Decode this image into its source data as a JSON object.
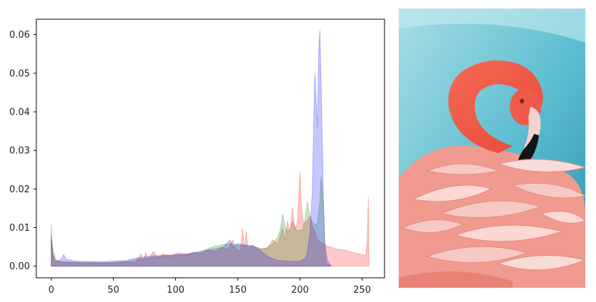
{
  "chart_data": {
    "type": "area",
    "title": "",
    "xlabel": "",
    "ylabel": "",
    "xlim": [
      -12,
      268
    ],
    "ylim": [
      -0.003,
      0.064
    ],
    "x_ticks": [
      0,
      50,
      100,
      150,
      200,
      250
    ],
    "y_ticks": [
      0.0,
      0.01,
      0.02,
      0.03,
      0.04,
      0.05,
      0.06
    ],
    "x_tick_labels": [
      "0",
      "50",
      "100",
      "150",
      "200",
      "250"
    ],
    "y_tick_labels": [
      "0.00",
      "0.01",
      "0.02",
      "0.03",
      "0.04",
      "0.05",
      "0.06"
    ],
    "grid": false,
    "legend": "none",
    "series": [
      {
        "color": "#ff0000",
        "fill_opacity": 0.22,
        "points": [
          [
            0,
            0.007
          ],
          [
            2,
            0.0035
          ],
          [
            4,
            0.0015
          ],
          [
            10,
            0.001
          ],
          [
            30,
            0.0009
          ],
          [
            50,
            0.0008
          ],
          [
            60,
            0.0012
          ],
          [
            68,
            0.001
          ],
          [
            72,
            0.0032
          ],
          [
            74,
            0.0015
          ],
          [
            76,
            0.0035
          ],
          [
            78,
            0.0018
          ],
          [
            82,
            0.0038
          ],
          [
            86,
            0.0022
          ],
          [
            90,
            0.0032
          ],
          [
            96,
            0.0026
          ],
          [
            102,
            0.0035
          ],
          [
            108,
            0.003
          ],
          [
            114,
            0.0036
          ],
          [
            120,
            0.0032
          ],
          [
            126,
            0.0042
          ],
          [
            132,
            0.0038
          ],
          [
            138,
            0.0048
          ],
          [
            142,
            0.0042
          ],
          [
            146,
            0.0068
          ],
          [
            148,
            0.0045
          ],
          [
            152,
            0.0038
          ],
          [
            154,
            0.0098
          ],
          [
            155,
            0.0045
          ],
          [
            157,
            0.0092
          ],
          [
            158,
            0.0045
          ],
          [
            162,
            0.0055
          ],
          [
            166,
            0.0042
          ],
          [
            170,
            0.0045
          ],
          [
            174,
            0.0048
          ],
          [
            178,
            0.0068
          ],
          [
            182,
            0.0058
          ],
          [
            186,
            0.0098
          ],
          [
            188,
            0.0065
          ],
          [
            190,
            0.0118
          ],
          [
            192,
            0.0085
          ],
          [
            194,
            0.0152
          ],
          [
            196,
            0.0095
          ],
          [
            198,
            0.0115
          ],
          [
            199,
            0.018
          ],
          [
            200,
            0.0245
          ],
          [
            201,
            0.016
          ],
          [
            203,
            0.011
          ],
          [
            206,
            0.0118
          ],
          [
            208,
            0.013
          ],
          [
            210,
            0.0102
          ],
          [
            212,
            0.009
          ],
          [
            214,
            0.007
          ],
          [
            216,
            0.0063
          ],
          [
            218,
            0.006
          ],
          [
            222,
            0.0052
          ],
          [
            226,
            0.0048
          ],
          [
            230,
            0.0044
          ],
          [
            236,
            0.0042
          ],
          [
            242,
            0.0036
          ],
          [
            248,
            0.0032
          ],
          [
            252,
            0.0028
          ],
          [
            253,
            0.003
          ],
          [
            254,
            0.0065
          ],
          [
            255,
            0.018
          ],
          [
            255.5,
            0
          ]
        ]
      },
      {
        "color": "#008000",
        "fill_opacity": 0.22,
        "points": [
          [
            0,
            0.011
          ],
          [
            1,
            0.004
          ],
          [
            3,
            0.0015
          ],
          [
            8,
            0.0012
          ],
          [
            20,
            0.001
          ],
          [
            40,
            0.0009
          ],
          [
            60,
            0.0012
          ],
          [
            70,
            0.0018
          ],
          [
            80,
            0.0022
          ],
          [
            90,
            0.0026
          ],
          [
            100,
            0.0028
          ],
          [
            110,
            0.003
          ],
          [
            120,
            0.0038
          ],
          [
            126,
            0.0046
          ],
          [
            132,
            0.0052
          ],
          [
            138,
            0.0056
          ],
          [
            144,
            0.0058
          ],
          [
            150,
            0.0055
          ],
          [
            156,
            0.0052
          ],
          [
            160,
            0.0053
          ],
          [
            166,
            0.0048
          ],
          [
            170,
            0.0045
          ],
          [
            174,
            0.0048
          ],
          [
            178,
            0.0058
          ],
          [
            182,
            0.0075
          ],
          [
            184,
            0.0092
          ],
          [
            186,
            0.0135
          ],
          [
            188,
            0.0105
          ],
          [
            190,
            0.009
          ],
          [
            192,
            0.0095
          ],
          [
            194,
            0.0115
          ],
          [
            196,
            0.01
          ],
          [
            198,
            0.009
          ],
          [
            200,
            0.0095
          ],
          [
            202,
            0.0092
          ],
          [
            204,
            0.012
          ],
          [
            206,
            0.0168
          ],
          [
            208,
            0.013
          ],
          [
            210,
            0.0115
          ],
          [
            212,
            0.0108
          ],
          [
            214,
            0.011
          ],
          [
            216,
            0.0168
          ],
          [
            217,
            0.0232
          ],
          [
            218,
            0.02
          ],
          [
            219,
            0.013
          ],
          [
            220,
            0.004
          ],
          [
            221,
            0.0008
          ],
          [
            225,
            0
          ]
        ]
      },
      {
        "color": "#0000ff",
        "fill_opacity": 0.22,
        "points": [
          [
            0,
            0.008
          ],
          [
            1,
            0.003
          ],
          [
            3,
            0.0012
          ],
          [
            6,
            0.0015
          ],
          [
            8,
            0.0018
          ],
          [
            10,
            0.003
          ],
          [
            12,
            0.0018
          ],
          [
            20,
            0.0013
          ],
          [
            40,
            0.0012
          ],
          [
            60,
            0.0015
          ],
          [
            70,
            0.0022
          ],
          [
            80,
            0.0026
          ],
          [
            90,
            0.0028
          ],
          [
            100,
            0.003
          ],
          [
            110,
            0.0032
          ],
          [
            120,
            0.0038
          ],
          [
            126,
            0.0042
          ],
          [
            132,
            0.0045
          ],
          [
            138,
            0.005
          ],
          [
            144,
            0.0068
          ],
          [
            146,
            0.005
          ],
          [
            150,
            0.0058
          ],
          [
            156,
            0.0055
          ],
          [
            162,
            0.0052
          ],
          [
            166,
            0.0048
          ],
          [
            170,
            0.0035
          ],
          [
            176,
            0.0022
          ],
          [
            182,
            0.0015
          ],
          [
            190,
            0.0013
          ],
          [
            196,
            0.0012
          ],
          [
            200,
            0.0013
          ],
          [
            204,
            0.002
          ],
          [
            206,
            0.0035
          ],
          [
            208,
            0.0085
          ],
          [
            210,
            0.02
          ],
          [
            211,
            0.036
          ],
          [
            212,
            0.05
          ],
          [
            213,
            0.043
          ],
          [
            214,
            0.036
          ],
          [
            215,
            0.055
          ],
          [
            216,
            0.0612
          ],
          [
            217,
            0.048
          ],
          [
            218,
            0.032
          ],
          [
            219,
            0.017
          ],
          [
            220,
            0.006
          ],
          [
            222,
            0.0015
          ],
          [
            225,
            0
          ]
        ]
      }
    ]
  },
  "photo": {
    "subject_icon": "flamingo-preening-icon",
    "palette": {
      "sky_light": "#9dd8e3",
      "sky_dark": "#2c9ab3",
      "head": "#f05a4a",
      "feather_light": "#f6c9c4",
      "feather_mid": "#ee8a80",
      "beak_tip": "#111111"
    }
  }
}
